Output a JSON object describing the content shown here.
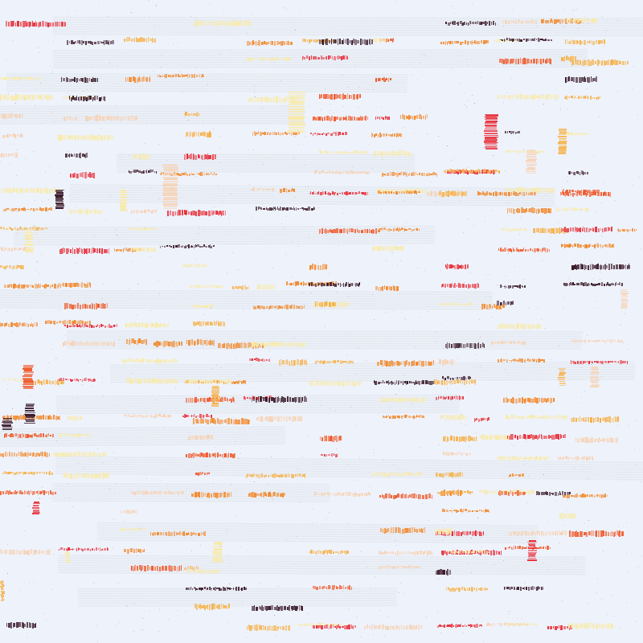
{
  "artwork": {
    "description_visible_text": "",
    "palette": {
      "background": "#eef2fb",
      "dark_plum": "#3a1a2a",
      "red": "#e8303a",
      "red_orange": "#ef5a2a",
      "orange": "#f28a2e",
      "amber": "#f6b24a",
      "pale_yellow": "#f8eaa8",
      "peach": "#f6d2b4",
      "graphite": "#8a9088"
    }
  }
}
